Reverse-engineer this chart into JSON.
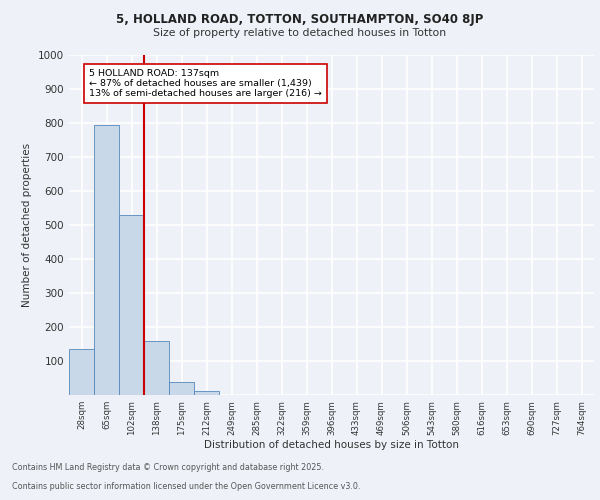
{
  "title_line1": "5, HOLLAND ROAD, TOTTON, SOUTHAMPTON, SO40 8JP",
  "title_line2": "Size of property relative to detached houses in Totton",
  "xlabel": "Distribution of detached houses by size in Totton",
  "ylabel": "Number of detached properties",
  "categories": [
    "28sqm",
    "65sqm",
    "102sqm",
    "138sqm",
    "175sqm",
    "212sqm",
    "249sqm",
    "285sqm",
    "322sqm",
    "359sqm",
    "396sqm",
    "433sqm",
    "469sqm",
    "506sqm",
    "543sqm",
    "580sqm",
    "616sqm",
    "653sqm",
    "690sqm",
    "727sqm",
    "764sqm"
  ],
  "values": [
    135,
    795,
    530,
    160,
    38,
    12,
    0,
    0,
    0,
    0,
    0,
    0,
    0,
    0,
    0,
    0,
    0,
    0,
    0,
    0,
    0
  ],
  "bar_color": "#c8d8e8",
  "bar_edge_color": "#5588bb",
  "vline_color": "#cc0000",
  "annotation_text": "5 HOLLAND ROAD: 137sqm\n← 87% of detached houses are smaller (1,439)\n13% of semi-detached houses are larger (216) →",
  "annotation_box_color": "#ffffff",
  "annotation_border_color": "#cc0000",
  "ylim": [
    0,
    1000
  ],
  "yticks": [
    0,
    100,
    200,
    300,
    400,
    500,
    600,
    700,
    800,
    900,
    1000
  ],
  "bg_color": "#eef2f8",
  "grid_color": "#ffffff",
  "footer_line1": "Contains HM Land Registry data © Crown copyright and database right 2025.",
  "footer_line2": "Contains public sector information licensed under the Open Government Licence v3.0."
}
